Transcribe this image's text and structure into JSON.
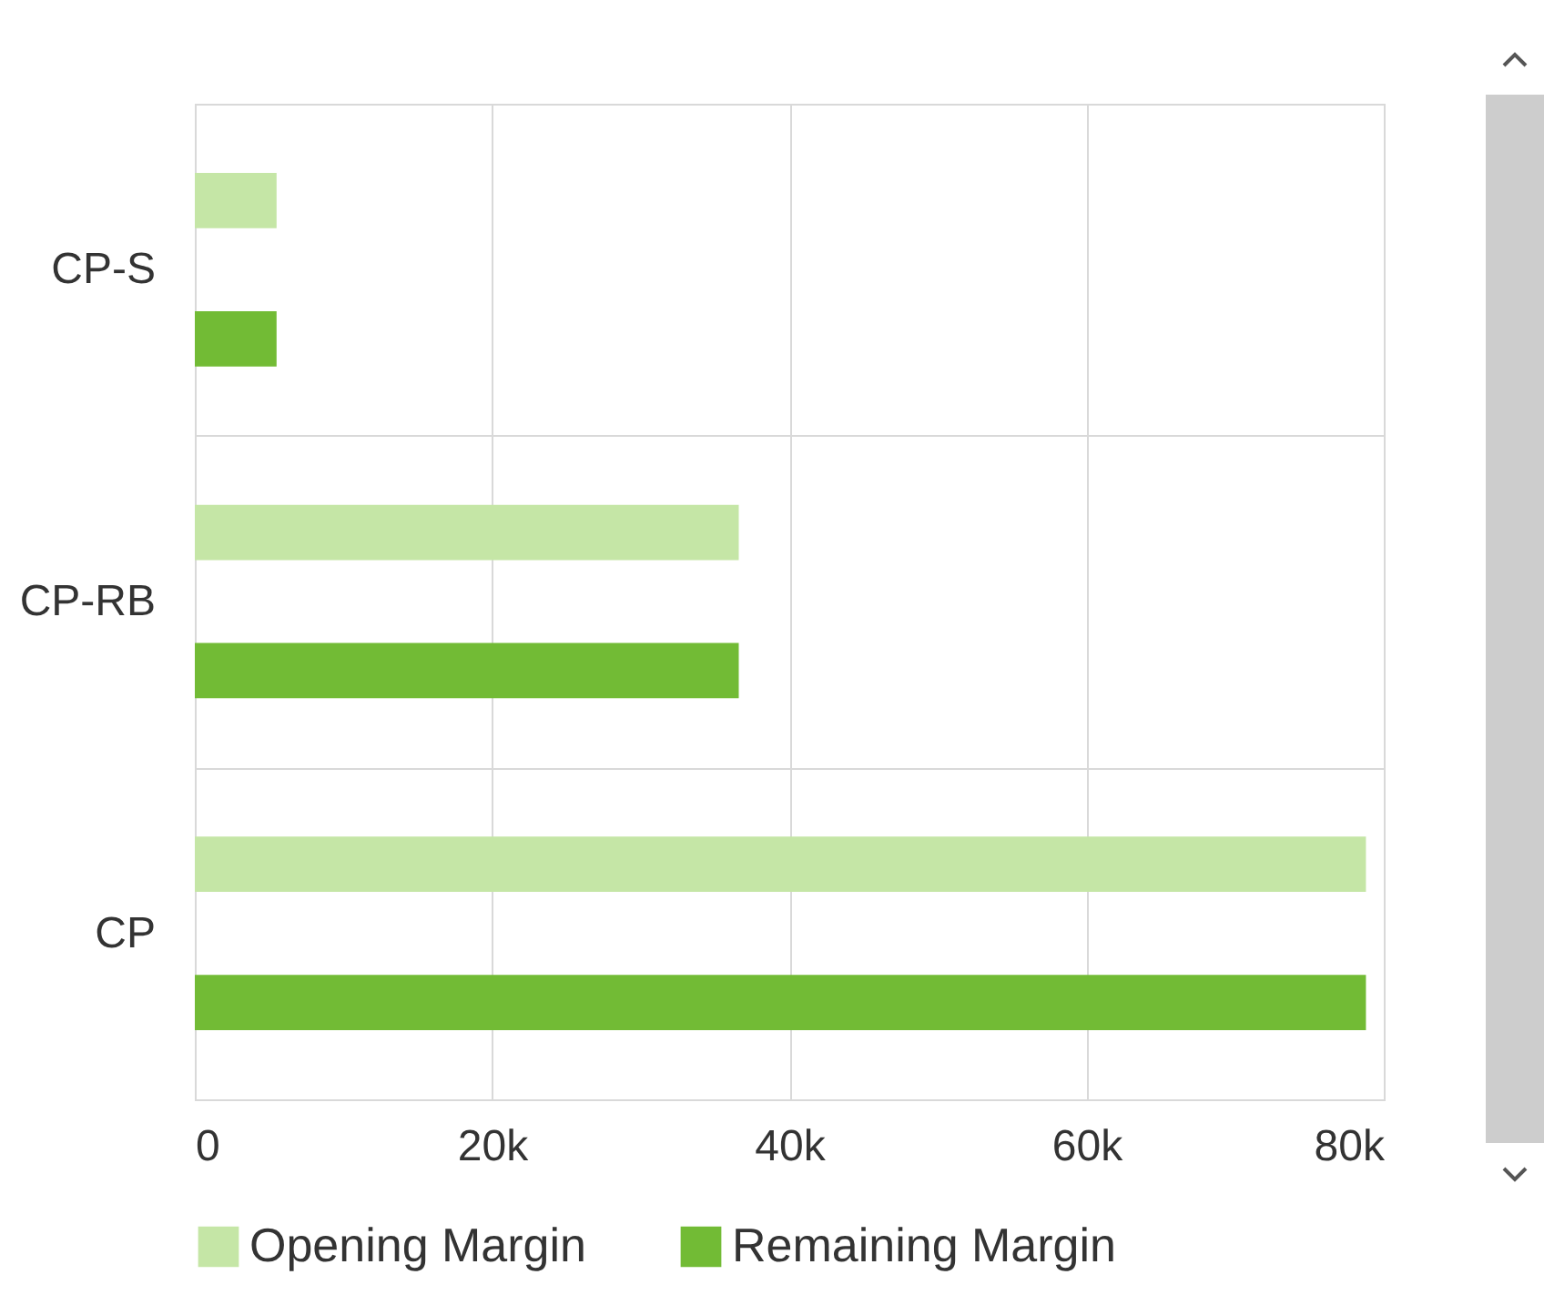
{
  "chart_data": {
    "type": "bar",
    "orientation": "horizontal",
    "categories": [
      "CP-S",
      "CP-RB",
      "CP"
    ],
    "series": [
      {
        "name": "Opening Margin",
        "color": "#c5e6a6",
        "values": [
          5.5,
          36.6,
          78.8
        ]
      },
      {
        "name": "Remaining Margin",
        "color": "#72bb35",
        "values": [
          5.5,
          36.6,
          78.8
        ]
      }
    ],
    "xlim": [
      0,
      80
    ],
    "xticks": [
      {
        "value": 0,
        "label": "0"
      },
      {
        "value": 20,
        "label": "20k"
      },
      {
        "value": 40,
        "label": "40k"
      },
      {
        "value": 60,
        "label": "60k"
      },
      {
        "value": 80,
        "label": "80k"
      }
    ],
    "grid": true,
    "legend": "bottom"
  }
}
